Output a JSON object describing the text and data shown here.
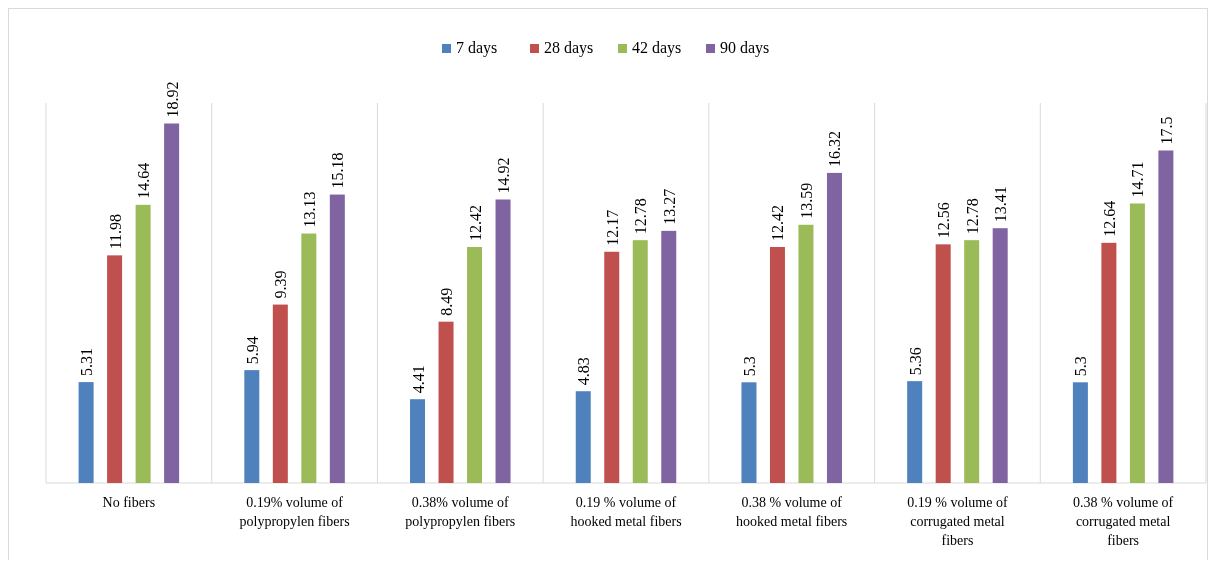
{
  "chart_data": {
    "type": "bar",
    "categories": [
      "No fibers",
      "0.19% volume of polypropylen fibers",
      "0.38% volume of polypropylen fibers",
      "0.19 % volume of hooked metal fibers",
      "0.38 % volume of hooked metal fibers",
      "0.19 % volume of corrugated metal fibers",
      "0.38 % volume of corrugated metal fibers"
    ],
    "series": [
      {
        "name": "7 days",
        "color": "#4f81bd",
        "values": [
          5.31,
          5.94,
          4.41,
          4.83,
          5.3,
          5.36,
          5.3
        ]
      },
      {
        "name": "28 days",
        "color": "#c0504d",
        "values": [
          11.98,
          9.39,
          8.49,
          12.17,
          12.42,
          12.56,
          12.64
        ]
      },
      {
        "name": "42 days",
        "color": "#9bbb59",
        "values": [
          14.64,
          13.13,
          12.42,
          12.78,
          13.59,
          12.78,
          14.71
        ]
      },
      {
        "name": "90 days",
        "color": "#8064a2",
        "values": [
          18.92,
          15.18,
          14.92,
          13.27,
          16.32,
          13.41,
          17.5
        ]
      }
    ],
    "data_labels": true,
    "grid": "x",
    "legend": "top"
  }
}
